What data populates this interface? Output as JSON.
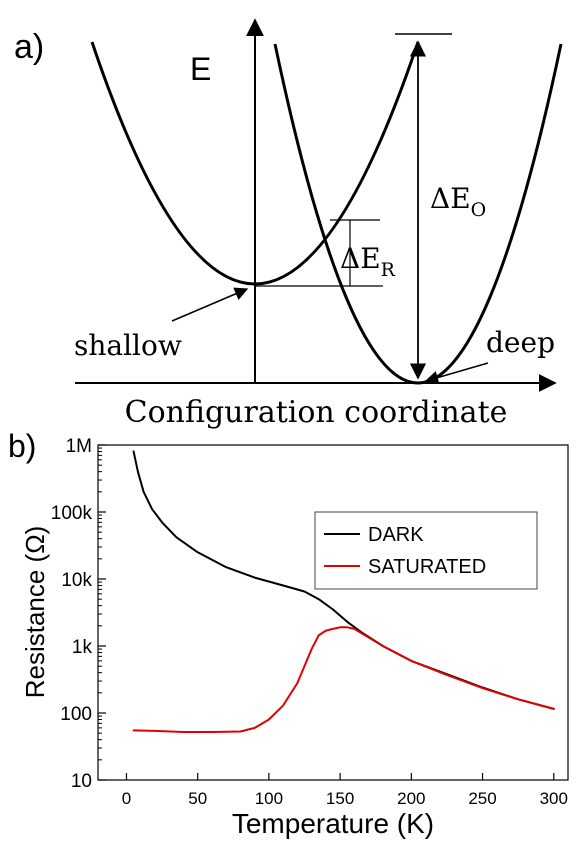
{
  "panel_a": {
    "label": "a)",
    "energy_axis": "E",
    "x_label": "Configuration coordinate",
    "shallow_label": "shallow",
    "deep_label": "deep",
    "delta_er": {
      "delta": "ΔE",
      "sub": "R"
    },
    "delta_eo": {
      "delta": "ΔE",
      "sub": "O"
    }
  },
  "panel_b": {
    "label": "b)"
  },
  "colors": {
    "dark": "#000000",
    "saturated": "#e00000"
  },
  "chart_data": {
    "type": "line",
    "xlabel": "Temperature (K)",
    "ylabel": "Resistance (Ω)",
    "xlim": [
      -20,
      310
    ],
    "ylim": [
      10,
      1000000
    ],
    "yscale": "log",
    "x_ticks": [
      0,
      50,
      100,
      150,
      200,
      250,
      300
    ],
    "x_tick_labels": [
      "0",
      "50",
      "100",
      "150",
      "200",
      "250",
      "300"
    ],
    "y_ticks": [
      10,
      100,
      1000,
      10000,
      100000,
      1000000
    ],
    "y_tick_labels": [
      "10",
      "100",
      "1k",
      "10k",
      "100k",
      "1M"
    ],
    "legend_position": "top-right",
    "series": [
      {
        "name": "DARK",
        "color": "#000000",
        "x": [
          5,
          8,
          12,
          18,
          25,
          35,
          50,
          70,
          90,
          110,
          125,
          135,
          145,
          155,
          165,
          180,
          200,
          225,
          250,
          275,
          300
        ],
        "y": [
          800000,
          400000,
          200000,
          110000,
          70000,
          42000,
          25000,
          15000,
          10500,
          8000,
          6500,
          5000,
          3500,
          2300,
          1600,
          1000,
          600,
          380,
          240,
          160,
          115
        ]
      },
      {
        "name": "SATURATED",
        "color": "#e00000",
        "x": [
          5,
          20,
          40,
          60,
          80,
          90,
          100,
          110,
          120,
          130,
          135,
          140,
          145,
          150,
          155,
          160,
          165,
          180,
          200,
          225,
          250,
          275,
          300
        ],
        "y": [
          55,
          54,
          52,
          52,
          53,
          60,
          80,
          130,
          280,
          900,
          1450,
          1700,
          1800,
          1900,
          1900,
          1800,
          1550,
          1000,
          600,
          370,
          235,
          160,
          115
        ]
      }
    ]
  }
}
